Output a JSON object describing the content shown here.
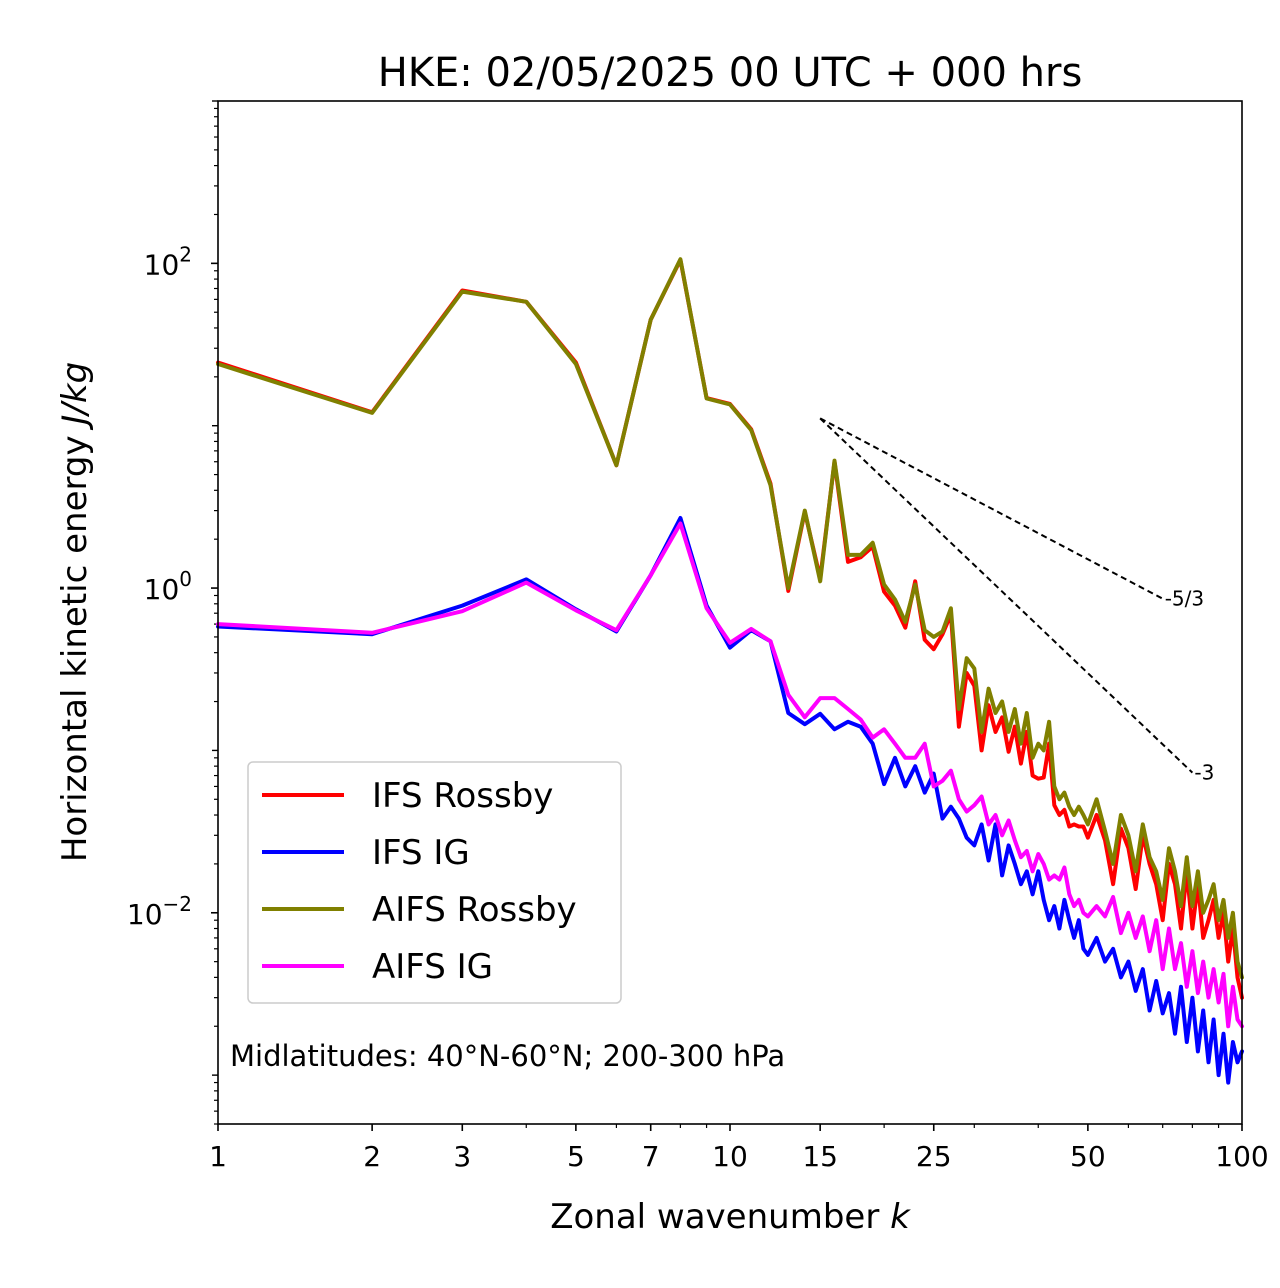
{
  "chart_data": {
    "type": "line",
    "title": "HKE: 02/05/2025 00 UTC + 000 hrs",
    "xlabel": "Zonal wavenumber k",
    "xlabel_parts": {
      "text": "Zonal wavenumber ",
      "symbol": "k"
    },
    "ylabel": "Horizontal kinetic energy J/kg",
    "ylabel_parts": {
      "text": "Horizontal kinetic energy ",
      "unit": "J/kg"
    },
    "xscale": "log",
    "yscale": "log",
    "xlim": [
      1,
      100
    ],
    "ylim": [
      0.0005,
      1000
    ],
    "grid": false,
    "xticks": [
      {
        "value": 1,
        "label": "1"
      },
      {
        "value": 2,
        "label": "2"
      },
      {
        "value": 3,
        "label": "3"
      },
      {
        "value": 5,
        "label": "5"
      },
      {
        "value": 7,
        "label": "7"
      },
      {
        "value": 10,
        "label": "10"
      },
      {
        "value": 15,
        "label": "15"
      },
      {
        "value": 25,
        "label": "25"
      },
      {
        "value": 50,
        "label": "50"
      },
      {
        "value": 100,
        "label": "100"
      }
    ],
    "yticks": [
      {
        "value": 100,
        "base": "10",
        "exp": "2"
      },
      {
        "value": 1,
        "base": "10",
        "exp": "0"
      },
      {
        "value": 0.01,
        "base": "10",
        "exp": "−2"
      }
    ],
    "legend": {
      "position": "lower-left"
    },
    "annotation": "Midlatitudes: 40°N-60°N; 200-300 hPa",
    "reference_lines": [
      {
        "label": "-5/3",
        "slope": -1.6667,
        "x": [
          15,
          70
        ],
        "y": [
          11.1,
          0.86
        ]
      },
      {
        "label": "-3",
        "slope": -3,
        "x": [
          15,
          80
        ],
        "y": [
          11.1,
          0.073
        ]
      }
    ],
    "series": [
      {
        "name": "IFS Rossby",
        "color": "#ff0000",
        "x": [
          1,
          2,
          3,
          4,
          5,
          6,
          7,
          8,
          9,
          10,
          11,
          12,
          13,
          14,
          15,
          16,
          17,
          18,
          19,
          20,
          21,
          22,
          23,
          24,
          25,
          26,
          27,
          28,
          29,
          30,
          31,
          32,
          33,
          34,
          35,
          36,
          37,
          38,
          39,
          40,
          41,
          42,
          43,
          44,
          45,
          46,
          47,
          48,
          49,
          50,
          52,
          54,
          56,
          58,
          60,
          62,
          64,
          66,
          68,
          70,
          72,
          74,
          76,
          78,
          80,
          82,
          84,
          86,
          88,
          90,
          92,
          94,
          96,
          98,
          100
        ],
        "y": [
          24.5,
          12.1,
          68,
          58,
          24.5,
          5.7,
          45,
          105,
          14.8,
          13.6,
          9.5,
          4.4,
          0.96,
          2.95,
          1.15,
          6.0,
          1.45,
          1.55,
          1.8,
          0.95,
          0.78,
          0.57,
          1.1,
          0.48,
          0.42,
          0.52,
          0.69,
          0.14,
          0.3,
          0.25,
          0.1,
          0.19,
          0.13,
          0.16,
          0.098,
          0.14,
          0.083,
          0.13,
          0.07,
          0.067,
          0.068,
          0.11,
          0.046,
          0.04,
          0.043,
          0.034,
          0.035,
          0.034,
          0.034,
          0.029,
          0.04,
          0.028,
          0.015,
          0.033,
          0.025,
          0.014,
          0.03,
          0.02,
          0.015,
          0.009,
          0.02,
          0.015,
          0.008,
          0.018,
          0.008,
          0.015,
          0.007,
          0.009,
          0.012,
          0.007,
          0.01,
          0.005,
          0.008,
          0.004,
          0.003
        ]
      },
      {
        "name": "IFS IG",
        "color": "#0000ff",
        "x": [
          1,
          2,
          3,
          4,
          5,
          6,
          7,
          8,
          9,
          10,
          11,
          12,
          13,
          14,
          15,
          16,
          17,
          18,
          19,
          20,
          21,
          22,
          23,
          24,
          25,
          26,
          27,
          28,
          29,
          30,
          31,
          32,
          33,
          34,
          35,
          36,
          37,
          38,
          39,
          40,
          41,
          42,
          43,
          44,
          45,
          46,
          47,
          48,
          49,
          50,
          52,
          54,
          56,
          58,
          60,
          62,
          64,
          66,
          68,
          70,
          72,
          74,
          76,
          78,
          80,
          82,
          84,
          86,
          88,
          90,
          92,
          94,
          96,
          98,
          100
        ],
        "y": [
          0.58,
          0.52,
          0.78,
          1.13,
          0.74,
          0.54,
          1.2,
          2.7,
          0.78,
          0.43,
          0.55,
          0.47,
          0.17,
          0.145,
          0.168,
          0.135,
          0.15,
          0.14,
          0.11,
          0.062,
          0.09,
          0.06,
          0.08,
          0.055,
          0.072,
          0.038,
          0.045,
          0.038,
          0.029,
          0.026,
          0.035,
          0.021,
          0.035,
          0.017,
          0.026,
          0.02,
          0.015,
          0.018,
          0.013,
          0.018,
          0.012,
          0.009,
          0.011,
          0.008,
          0.012,
          0.009,
          0.007,
          0.009,
          0.006,
          0.0055,
          0.007,
          0.005,
          0.006,
          0.004,
          0.005,
          0.0033,
          0.0045,
          0.0025,
          0.0038,
          0.0024,
          0.0032,
          0.0018,
          0.0035,
          0.0016,
          0.003,
          0.0014,
          0.0025,
          0.0012,
          0.0022,
          0.001,
          0.0018,
          0.0009,
          0.0016,
          0.0012,
          0.0014
        ]
      },
      {
        "name": "AIFS Rossby",
        "color": "#808000",
        "x": [
          1,
          2,
          3,
          4,
          5,
          6,
          7,
          8,
          9,
          10,
          11,
          12,
          13,
          14,
          15,
          16,
          17,
          18,
          19,
          20,
          21,
          22,
          23,
          24,
          25,
          26,
          27,
          28,
          29,
          30,
          31,
          32,
          33,
          34,
          35,
          36,
          37,
          38,
          39,
          40,
          41,
          42,
          43,
          44,
          45,
          46,
          47,
          48,
          49,
          50,
          52,
          54,
          56,
          58,
          60,
          62,
          64,
          66,
          68,
          70,
          72,
          74,
          76,
          78,
          80,
          82,
          84,
          86,
          88,
          90,
          92,
          94,
          96,
          98,
          100
        ],
        "y": [
          24,
          12,
          67,
          58,
          24,
          5.7,
          45,
          106,
          14.7,
          13.5,
          9.4,
          4.3,
          1.0,
          3.0,
          1.1,
          6.1,
          1.6,
          1.6,
          1.9,
          1.05,
          0.85,
          0.62,
          1.05,
          0.55,
          0.5,
          0.54,
          0.75,
          0.18,
          0.37,
          0.32,
          0.13,
          0.24,
          0.17,
          0.2,
          0.13,
          0.18,
          0.11,
          0.17,
          0.09,
          0.11,
          0.1,
          0.15,
          0.06,
          0.05,
          0.055,
          0.045,
          0.04,
          0.045,
          0.04,
          0.035,
          0.05,
          0.032,
          0.02,
          0.04,
          0.03,
          0.018,
          0.035,
          0.022,
          0.018,
          0.012,
          0.025,
          0.018,
          0.011,
          0.022,
          0.011,
          0.018,
          0.01,
          0.012,
          0.015,
          0.009,
          0.012,
          0.007,
          0.01,
          0.005,
          0.004
        ]
      },
      {
        "name": "AIFS IG",
        "color": "#ff00ff",
        "x": [
          1,
          2,
          3,
          4,
          5,
          6,
          7,
          8,
          9,
          10,
          11,
          12,
          13,
          14,
          15,
          16,
          17,
          18,
          19,
          20,
          21,
          22,
          23,
          24,
          25,
          26,
          27,
          28,
          29,
          30,
          31,
          32,
          33,
          34,
          35,
          36,
          37,
          38,
          39,
          40,
          41,
          42,
          43,
          44,
          45,
          46,
          47,
          48,
          49,
          50,
          52,
          54,
          56,
          58,
          60,
          62,
          64,
          66,
          68,
          70,
          72,
          74,
          76,
          78,
          80,
          82,
          84,
          86,
          88,
          90,
          92,
          94,
          96,
          98,
          100
        ],
        "y": [
          0.6,
          0.53,
          0.72,
          1.08,
          0.73,
          0.55,
          1.2,
          2.5,
          0.75,
          0.46,
          0.56,
          0.47,
          0.22,
          0.16,
          0.21,
          0.21,
          0.18,
          0.155,
          0.12,
          0.135,
          0.11,
          0.09,
          0.09,
          0.11,
          0.06,
          0.065,
          0.075,
          0.05,
          0.042,
          0.046,
          0.052,
          0.035,
          0.04,
          0.03,
          0.037,
          0.028,
          0.022,
          0.024,
          0.018,
          0.023,
          0.02,
          0.016,
          0.017,
          0.016,
          0.019,
          0.013,
          0.011,
          0.012,
          0.01,
          0.0095,
          0.011,
          0.0095,
          0.0125,
          0.0075,
          0.01,
          0.007,
          0.0095,
          0.0058,
          0.009,
          0.0045,
          0.008,
          0.0045,
          0.0065,
          0.0035,
          0.0058,
          0.0032,
          0.005,
          0.003,
          0.0045,
          0.0028,
          0.0042,
          0.002,
          0.0035,
          0.0022,
          0.002
        ]
      }
    ]
  }
}
